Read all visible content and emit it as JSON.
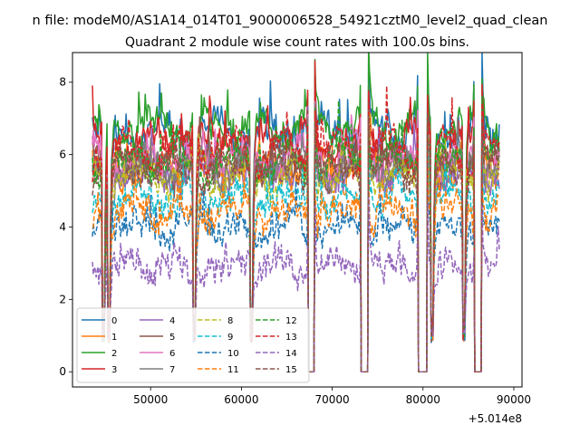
{
  "chart_data": {
    "type": "line",
    "suptitle": "n file: modeM0/AS1A14_014T01_9000006528_54921cztM0_level2_quad_clean",
    "title": "Quadrant 2 module wise count rates with 100.0s bins.",
    "xlabel": "",
    "ylabel": "",
    "x_offset_label": "+5.014e8",
    "x_offset": 501400000,
    "xlim": [
      41400,
      90900
    ],
    "ylim": [
      -0.42,
      8.82
    ],
    "xticks": [
      50000,
      60000,
      70000,
      80000,
      90000
    ],
    "xtick_labels": [
      "50000",
      "60000",
      "70000",
      "80000",
      "90000"
    ],
    "yticks": [
      0,
      2,
      4,
      6,
      8
    ],
    "ytick_labels": [
      "0",
      "2",
      "4",
      "6",
      "8"
    ],
    "x_start": 43600,
    "x_end": 88400,
    "bin_seconds": 100.0,
    "gaps": [
      [
        67400,
        68000
      ],
      [
        73200,
        73900
      ],
      [
        79500,
        80400
      ],
      [
        85700,
        86400
      ]
    ],
    "dips": [
      44800,
      45400,
      54800,
      61100,
      81000,
      84500
    ],
    "legend_location": "lower left",
    "series": [
      {
        "name": "0",
        "color": "#1f77b4",
        "dash": "solid",
        "level": 6.6
      },
      {
        "name": "1",
        "color": "#ff7f0e",
        "dash": "solid",
        "level": 5.6
      },
      {
        "name": "2",
        "color": "#2ca02c",
        "dash": "solid",
        "level": 6.8
      },
      {
        "name": "3",
        "color": "#d62728",
        "dash": "solid",
        "level": 6.3
      },
      {
        "name": "4",
        "color": "#9467bd",
        "dash": "solid",
        "level": 5.5
      },
      {
        "name": "5",
        "color": "#8c564b",
        "dash": "solid",
        "level": 5.7
      },
      {
        "name": "6",
        "color": "#e377c2",
        "dash": "solid",
        "level": 5.9
      },
      {
        "name": "7",
        "color": "#7f7f7f",
        "dash": "solid",
        "level": 5.6
      },
      {
        "name": "8",
        "color": "#bcbd22",
        "dash": "dashed",
        "level": 5.4
      },
      {
        "name": "9",
        "color": "#17becf",
        "dash": "dashed",
        "level": 4.8
      },
      {
        "name": "10",
        "color": "#1f77b4",
        "dash": "dashed",
        "level": 4.0
      },
      {
        "name": "11",
        "color": "#ff7f0e",
        "dash": "dashed",
        "level": 4.4
      },
      {
        "name": "12",
        "color": "#2ca02c",
        "dash": "dashed",
        "level": 5.8
      },
      {
        "name": "13",
        "color": "#d62728",
        "dash": "dashed",
        "level": 6.1
      },
      {
        "name": "14",
        "color": "#9467bd",
        "dash": "dashed",
        "level": 2.9
      },
      {
        "name": "15",
        "color": "#8c564b",
        "dash": "dashed",
        "level": 5.6
      }
    ]
  }
}
